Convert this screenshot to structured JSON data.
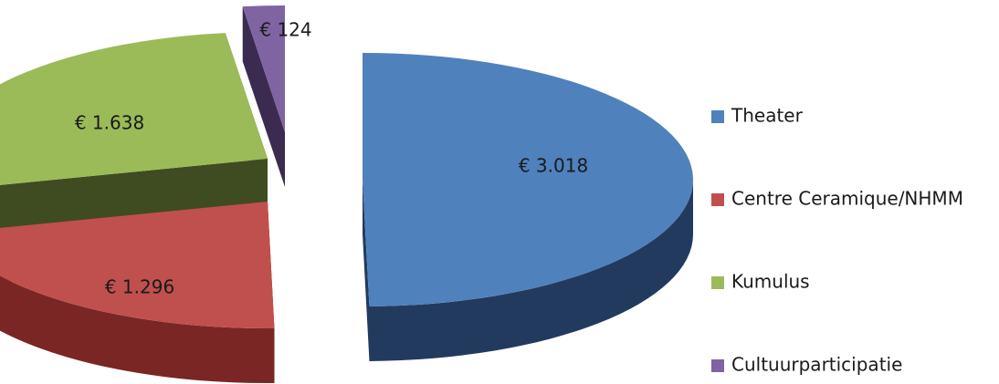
{
  "chart_data": {
    "type": "pie",
    "style": "3d-exploded",
    "series": [
      {
        "name": "Theater",
        "value": 3018,
        "label": "€ 3.018",
        "color": "#4F81BD",
        "side_color": "#233A5F"
      },
      {
        "name": "Centre Ceramique/NHMM",
        "value": 1296,
        "label": "€ 1.296",
        "color": "#C0504D",
        "side_color": "#7A2624"
      },
      {
        "name": "Kumulus",
        "value": 1638,
        "label": "€ 1.638",
        "color": "#9BBB59",
        "side_color": "#3F4C22"
      },
      {
        "name": "Cultuurparticipatie",
        "value": 124,
        "label": "€ 124",
        "color": "#8064A2",
        "side_color": "#3B2B50"
      }
    ],
    "legend": {
      "position": "right"
    }
  }
}
